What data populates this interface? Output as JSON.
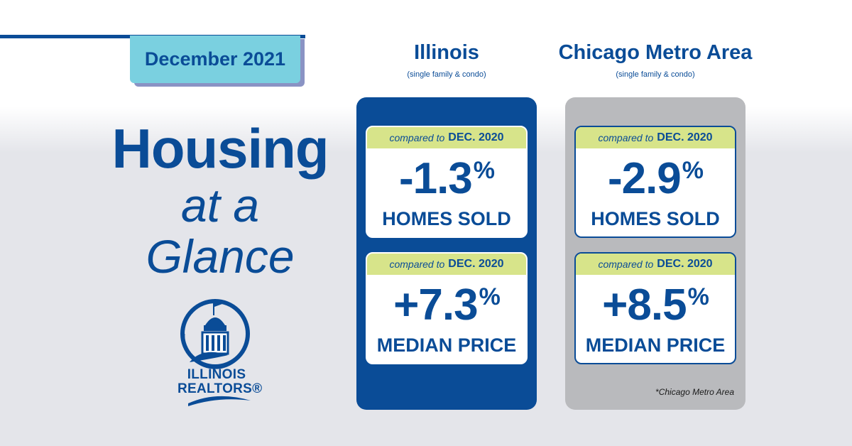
{
  "header": {
    "date_label": "December 2021"
  },
  "headline": {
    "line1": "Housing",
    "line2": "at a",
    "line3": "Glance"
  },
  "logo": {
    "line1": "ILLINOIS",
    "line2": "REALTORS®"
  },
  "colors": {
    "brand_blue": "#0a4c97",
    "tab_cyan": "#7ad0e0",
    "band_green": "#d7e48a",
    "panel_gray": "#b9babd"
  },
  "columns": [
    {
      "name": "Illinois",
      "sub": "(single family & condo)",
      "cards": [
        {
          "compare_prefix": "compared to",
          "compare_period": "DEC. 2020",
          "value": "-1.3",
          "unit": "%",
          "label": "HOMES SOLD"
        },
        {
          "compare_prefix": "compared to",
          "compare_period": "DEC. 2020",
          "value": "+7.3",
          "unit": "%",
          "label": "MEDIAN PRICE"
        }
      ]
    },
    {
      "name": "Chicago Metro Area",
      "sub": "(single family & condo)",
      "cards": [
        {
          "compare_prefix": "compared to",
          "compare_period": "DEC. 2020",
          "value": "-2.9",
          "unit": "%",
          "label": "HOMES SOLD"
        },
        {
          "compare_prefix": "compared to",
          "compare_period": "DEC. 2020",
          "value": "+8.5",
          "unit": "%",
          "label": "MEDIAN PRICE"
        }
      ],
      "footnote": "*Chicago Metro Area"
    }
  ]
}
